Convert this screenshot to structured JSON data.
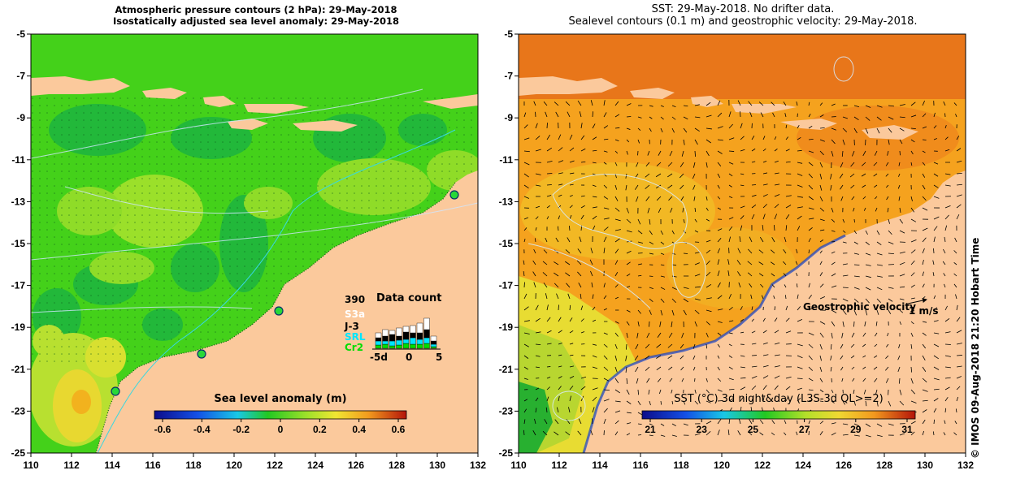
{
  "left_panel": {
    "title_line1": "Atmospheric pressure contours (2 hPa): 29-May-2018",
    "title_line2": "Isostatically adjusted sea level anomaly: 29-May-2018",
    "colorbar": {
      "title": "Sea level anomaly (m)",
      "ticks": [
        "-0.6",
        "-0.4",
        "-0.2",
        "0",
        "0.2",
        "0.4",
        "0.6"
      ]
    },
    "data_count": {
      "count": "390",
      "title": "Data count",
      "missions": [
        {
          "name": "S3a",
          "color": "#ffffff"
        },
        {
          "name": "J-3",
          "color": "#000000"
        },
        {
          "name": "SRL",
          "color": "#00e5ff"
        },
        {
          "name": "Cr2",
          "color": "#00dd00"
        }
      ],
      "axis_ticks": [
        "-5d",
        "0",
        "5"
      ]
    }
  },
  "right_panel": {
    "title_line1": "SST: 29-May-2018. No drifter data.",
    "title_line2": "Sealevel contours (0.1 m) and geostrophic velocity: 29-May-2018.",
    "velocity_key": "Geostrophic velocity",
    "velocity_scale": "1 m/s",
    "colorbar": {
      "title": "SST (°C) 3d night&day (L3S-3d QL>=2)",
      "ticks": [
        "21",
        "23",
        "25",
        "27",
        "29",
        "31"
      ]
    }
  },
  "axes": {
    "x_ticks": [
      "110",
      "112",
      "114",
      "116",
      "118",
      "120",
      "122",
      "124",
      "126",
      "128",
      "130",
      "132"
    ],
    "y_ticks": [
      "-5",
      "-7",
      "-9",
      "-11",
      "-13",
      "-15",
      "-17",
      "-19",
      "-21",
      "-23",
      "-25"
    ]
  },
  "side_label": "© IMOS 09-Aug-2018 21:20 Hobart Time",
  "colors": {
    "land": "#fbc99c",
    "sla_ocean": "#44d11a",
    "sst_ocean": "#f5a21e"
  }
}
